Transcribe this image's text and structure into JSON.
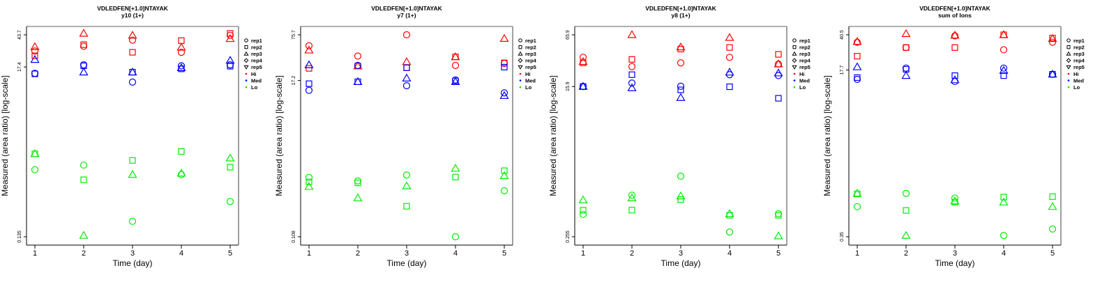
{
  "figure": {
    "legend_entries": [
      {
        "label": "rep1",
        "symbol": "circle"
      },
      {
        "label": "rep2",
        "symbol": "square"
      },
      {
        "label": "rep3",
        "symbol": "triangle-up"
      },
      {
        "label": "rep4",
        "symbol": "diamond"
      },
      {
        "label": "rep5",
        "symbol": "triangle-down"
      },
      {
        "label": "Hi",
        "symbol": "dot",
        "color": "#ff0000"
      },
      {
        "label": "Med",
        "symbol": "dot",
        "color": "#0000ff"
      },
      {
        "label": "Lo",
        "symbol": "dot",
        "color": "#00ee00"
      }
    ],
    "colors": {
      "Hi": "#ff0000",
      "Med": "#0000ff",
      "Lo": "#00ee00"
    }
  },
  "chart_data": [
    {
      "type": "scatter",
      "title": "VDLEDFEN[+1.0]NTAYAK",
      "subtitle": "y10 (1+)",
      "xlabel": "Time (day)",
      "ylabel": "Measured (area ratio) [log-scale]",
      "yscale": "log",
      "x_ticks": [
        1,
        2,
        3,
        4,
        5
      ],
      "y_ticks": [
        "0.135",
        "17.4",
        "43.7"
      ],
      "y_tick_values": [
        0.135,
        17.4,
        43.7
      ],
      "ylim": [
        0.115,
        60
      ],
      "xlim": [
        0.85,
        5.2
      ],
      "legend": "right",
      "series": [
        {
          "group": "Hi",
          "rep": "rep1",
          "x": [
            1,
            2,
            3,
            4,
            5
          ],
          "y": [
            27.5,
            31.5,
            37.5,
            26.5,
            43.0
          ]
        },
        {
          "group": "Hi",
          "rep": "rep2",
          "x": [
            1,
            2,
            3,
            4,
            5
          ],
          "y": [
            24.0,
            33.0,
            26.5,
            37.0,
            45.5
          ]
        },
        {
          "group": "Hi",
          "rep": "rep3",
          "x": [
            1,
            2,
            3,
            4,
            5
          ],
          "y": [
            31.0,
            45.5,
            43.0,
            30.5,
            39.0
          ]
        },
        {
          "group": "Med",
          "rep": "rep1",
          "x": [
            1,
            2,
            3,
            4,
            5
          ],
          "y": [
            14.5,
            18.5,
            11.3,
            18.0,
            18.5
          ]
        },
        {
          "group": "Med",
          "rep": "rep2",
          "x": [
            1,
            2,
            3,
            4,
            5
          ],
          "y": [
            14.3,
            18.0,
            15.0,
            16.5,
            17.8
          ]
        },
        {
          "group": "Med",
          "rep": "rep3",
          "x": [
            1,
            2,
            3,
            4,
            5
          ],
          "y": [
            21.5,
            15.0,
            15.0,
            17.0,
            21.0
          ]
        },
        {
          "group": "Lo",
          "rep": "rep1",
          "x": [
            1,
            2,
            3,
            4,
            5
          ],
          "y": [
            0.92,
            1.05,
            0.21,
            0.8,
            0.37
          ]
        },
        {
          "group": "Lo",
          "rep": "rep2",
          "x": [
            1,
            2,
            3,
            4,
            5
          ],
          "y": [
            1.45,
            0.69,
            1.2,
            1.55,
            0.99
          ]
        },
        {
          "group": "Lo",
          "rep": "rep3",
          "x": [
            1,
            2,
            3,
            4,
            5
          ],
          "y": [
            1.45,
            0.14,
            0.8,
            0.83,
            1.28
          ]
        }
      ]
    },
    {
      "type": "scatter",
      "title": "VDLEDFEN[+1.0]NTAYAK",
      "subtitle": "y7 (1+)",
      "xlabel": "Time (day)",
      "ylabel": "Measured (area ratio) [log-scale]",
      "yscale": "log",
      "x_ticks": [
        1,
        2,
        3,
        4,
        5
      ],
      "y_ticks": [
        "0.108",
        "17.2",
        "75.7"
      ],
      "y_tick_values": [
        0.108,
        17.2,
        75.7
      ],
      "ylim": [
        0.092,
        100
      ],
      "xlim": [
        0.85,
        5.2
      ],
      "legend": "right",
      "series": [
        {
          "group": "Hi",
          "rep": "rep1",
          "x": [
            1,
            2,
            3,
            4,
            5
          ],
          "y": [
            53.0,
            38.0,
            75.7,
            28.0,
            30.0
          ]
        },
        {
          "group": "Hi",
          "rep": "rep2",
          "x": [
            1,
            2,
            3,
            4,
            5
          ],
          "y": [
            25.5,
            27.5,
            26.0,
            37.0,
            30.5
          ]
        },
        {
          "group": "Hi",
          "rep": "rep3",
          "x": [
            1,
            2,
            3,
            4,
            5
          ],
          "y": [
            46.0,
            27.5,
            31.5,
            37.0,
            67.0
          ]
        },
        {
          "group": "Med",
          "rep": "rep1",
          "x": [
            1,
            2,
            3,
            4,
            5
          ],
          "y": [
            12.5,
            28.0,
            14.5,
            17.5,
            11.5
          ]
        },
        {
          "group": "Med",
          "rep": "rep2",
          "x": [
            1,
            2,
            3,
            4,
            5
          ],
          "y": [
            15.5,
            16.5,
            26.0,
            17.0,
            26.5
          ]
        },
        {
          "group": "Med",
          "rep": "rep3",
          "x": [
            1,
            2,
            3,
            4,
            5
          ],
          "y": [
            28.5,
            16.5,
            18.5,
            16.5,
            10.5
          ]
        },
        {
          "group": "Lo",
          "rep": "rep1",
          "x": [
            1,
            2,
            3,
            4,
            5
          ],
          "y": [
            0.74,
            0.66,
            0.8,
            0.108,
            0.48
          ]
        },
        {
          "group": "Lo",
          "rep": "rep2",
          "x": [
            1,
            2,
            3,
            4,
            5
          ],
          "y": [
            0.64,
            0.62,
            0.29,
            0.75,
            0.92
          ]
        },
        {
          "group": "Lo",
          "rep": "rep3",
          "x": [
            1,
            2,
            3,
            4,
            5
          ],
          "y": [
            0.55,
            0.38,
            0.56,
            0.99,
            0.78
          ]
        }
      ]
    },
    {
      "type": "scatter",
      "title": "VDLEDFEN[+1.0]NTAYAK",
      "subtitle": "y8 (1+)",
      "xlabel": "Time (day)",
      "ylabel": "Measured (area ratio) [log-scale]",
      "yscale": "log",
      "x_ticks": [
        1,
        2,
        3,
        4,
        5
      ],
      "y_ticks": [
        "0.255",
        "15.9",
        "65.9"
      ],
      "y_tick_values": [
        0.255,
        15.9,
        65.9
      ],
      "ylim": [
        0.22,
        82
      ],
      "xlim": [
        0.85,
        5.2
      ],
      "legend": "right",
      "series": [
        {
          "group": "Hi",
          "rep": "rep1",
          "x": [
            1,
            2,
            3,
            4,
            5
          ],
          "y": [
            35.5,
            27.5,
            30.5,
            35.5,
            29.5
          ]
        },
        {
          "group": "Hi",
          "rep": "rep2",
          "x": [
            1,
            2,
            3,
            4,
            5
          ],
          "y": [
            30.5,
            33.5,
            44.5,
            46.5,
            38.5
          ]
        },
        {
          "group": "Hi",
          "rep": "rep3",
          "x": [
            1,
            2,
            3,
            4,
            5
          ],
          "y": [
            31.5,
            65.9,
            47.0,
            61.0,
            29.5
          ]
        },
        {
          "group": "Med",
          "rep": "rep1",
          "x": [
            1,
            2,
            3,
            4,
            5
          ],
          "y": [
            15.9,
            17.5,
            16.0,
            22.0,
            21.5
          ]
        },
        {
          "group": "Med",
          "rep": "rep2",
          "x": [
            1,
            2,
            3,
            4,
            5
          ],
          "y": [
            15.9,
            22.0,
            14.5,
            15.8,
            11.5
          ]
        },
        {
          "group": "Med",
          "rep": "rep3",
          "x": [
            1,
            2,
            3,
            4,
            5
          ],
          "y": [
            15.9,
            15.3,
            11.7,
            23.5,
            23.0
          ]
        },
        {
          "group": "Lo",
          "rep": "rep1",
          "x": [
            1,
            2,
            3,
            4,
            5
          ],
          "y": [
            0.47,
            0.8,
            1.35,
            0.29,
            0.48
          ]
        },
        {
          "group": "Lo",
          "rep": "rep2",
          "x": [
            1,
            2,
            3,
            4,
            5
          ],
          "y": [
            0.53,
            0.53,
            0.71,
            0.46,
            0.46
          ]
        },
        {
          "group": "Lo",
          "rep": "rep3",
          "x": [
            1,
            2,
            3,
            4,
            5
          ],
          "y": [
            0.7,
            0.74,
            0.78,
            0.48,
            0.26
          ]
        }
      ]
    },
    {
      "type": "scatter",
      "title": "VDLEDFEN[+1.0]NTAYAK",
      "subtitle": "sum of Ions",
      "xlabel": "Time (day)",
      "ylabel": "Measured (area ratio) [log-scale]",
      "yscale": "log",
      "x_ticks": [
        1,
        2,
        3,
        4,
        5
      ],
      "y_ticks": [
        "0.35",
        "17.7",
        "40.5"
      ],
      "y_tick_values": [
        0.35,
        17.7,
        40.5
      ],
      "ylim": [
        0.3,
        52
      ],
      "xlim": [
        0.85,
        5.2
      ],
      "legend": "right",
      "series": [
        {
          "group": "Hi",
          "rep": "rep1",
          "x": [
            1,
            2,
            3,
            4,
            5
          ],
          "y": [
            34.0,
            30.0,
            39.5,
            28.5,
            34.0
          ]
        },
        {
          "group": "Hi",
          "rep": "rep2",
          "x": [
            1,
            2,
            3,
            4,
            5
          ],
          "y": [
            24.5,
            30.0,
            30.0,
            40.5,
            37.5
          ]
        },
        {
          "group": "Hi",
          "rep": "rep3",
          "x": [
            1,
            2,
            3,
            4,
            5
          ],
          "y": [
            34.5,
            41.5,
            40.0,
            40.5,
            37.0
          ]
        },
        {
          "group": "Med",
          "rep": "rep1",
          "x": [
            1,
            2,
            3,
            4,
            5
          ],
          "y": [
            14.2,
            18.5,
            13.5,
            18.5,
            16.0
          ]
        },
        {
          "group": "Med",
          "rep": "rep2",
          "x": [
            1,
            2,
            3,
            4,
            5
          ],
          "y": [
            14.8,
            18.0,
            15.5,
            15.5,
            16.0
          ]
        },
        {
          "group": "Med",
          "rep": "rep3",
          "x": [
            1,
            2,
            3,
            4,
            5
          ],
          "y": [
            19.0,
            15.5,
            14.0,
            17.5,
            16.0
          ]
        },
        {
          "group": "Lo",
          "rep": "rep1",
          "x": [
            1,
            2,
            3,
            4,
            5
          ],
          "y": [
            0.71,
            0.97,
            0.87,
            0.36,
            0.42
          ]
        },
        {
          "group": "Lo",
          "rep": "rep2",
          "x": [
            1,
            2,
            3,
            4,
            5
          ],
          "y": [
            0.96,
            0.65,
            0.79,
            0.89,
            0.9
          ]
        },
        {
          "group": "Lo",
          "rep": "rep3",
          "x": [
            1,
            2,
            3,
            4,
            5
          ],
          "y": [
            0.97,
            0.36,
            0.81,
            0.79,
            0.71
          ]
        }
      ]
    }
  ]
}
